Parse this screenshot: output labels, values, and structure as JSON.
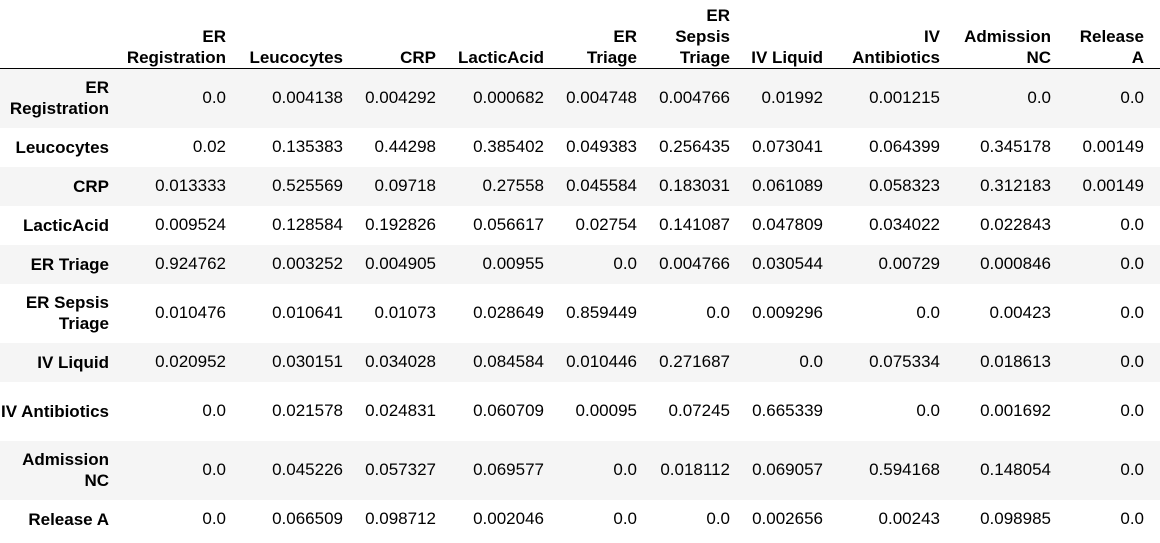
{
  "columns": [
    "ER Registration",
    "Leucocytes",
    "CRP",
    "LacticAcid",
    "ER Triage",
    "ER Sepsis Triage",
    "IV Liquid",
    "IV Antibiotics",
    "Admission NC",
    "Release A"
  ],
  "rows": [
    {
      "label": "ER Registration",
      "values": [
        "0.0",
        "0.004138",
        "0.004292",
        "0.000682",
        "0.004748",
        "0.004766",
        "0.01992",
        "0.001215",
        "0.0",
        "0.0"
      ]
    },
    {
      "label": "Leucocytes",
      "values": [
        "0.02",
        "0.135383",
        "0.44298",
        "0.385402",
        "0.049383",
        "0.256435",
        "0.073041",
        "0.064399",
        "0.345178",
        "0.00149"
      ]
    },
    {
      "label": "CRP",
      "values": [
        "0.013333",
        "0.525569",
        "0.09718",
        "0.27558",
        "0.045584",
        "0.183031",
        "0.061089",
        "0.058323",
        "0.312183",
        "0.00149"
      ]
    },
    {
      "label": "LacticAcid",
      "values": [
        "0.009524",
        "0.128584",
        "0.192826",
        "0.056617",
        "0.02754",
        "0.141087",
        "0.047809",
        "0.034022",
        "0.022843",
        "0.0"
      ]
    },
    {
      "label": "ER Triage",
      "values": [
        "0.924762",
        "0.003252",
        "0.004905",
        "0.00955",
        "0.0",
        "0.004766",
        "0.030544",
        "0.00729",
        "0.000846",
        "0.0"
      ]
    },
    {
      "label": "ER Sepsis Triage",
      "values": [
        "0.010476",
        "0.010641",
        "0.01073",
        "0.028649",
        "0.859449",
        "0.0",
        "0.009296",
        "0.0",
        "0.00423",
        "0.0"
      ]
    },
    {
      "label": "IV Liquid",
      "values": [
        "0.020952",
        "0.030151",
        "0.034028",
        "0.084584",
        "0.010446",
        "0.271687",
        "0.0",
        "0.075334",
        "0.018613",
        "0.0"
      ]
    },
    {
      "label": "IV Antibiotics",
      "values": [
        "0.0",
        "0.021578",
        "0.024831",
        "0.060709",
        "0.00095",
        "0.07245",
        "0.665339",
        "0.0",
        "0.001692",
        "0.0"
      ]
    },
    {
      "label": "Admission NC",
      "values": [
        "0.0",
        "0.045226",
        "0.057327",
        "0.069577",
        "0.0",
        "0.018112",
        "0.069057",
        "0.594168",
        "0.148054",
        "0.0"
      ]
    },
    {
      "label": "Release A",
      "values": [
        "0.0",
        "0.066509",
        "0.098712",
        "0.002046",
        "0.0",
        "0.0",
        "0.002656",
        "0.00243",
        "0.098985",
        "0.0"
      ]
    }
  ],
  "colors": {
    "background": "#ffffff",
    "stripe": "#f5f5f5",
    "header_rule": "#000000",
    "text": "#000000"
  }
}
